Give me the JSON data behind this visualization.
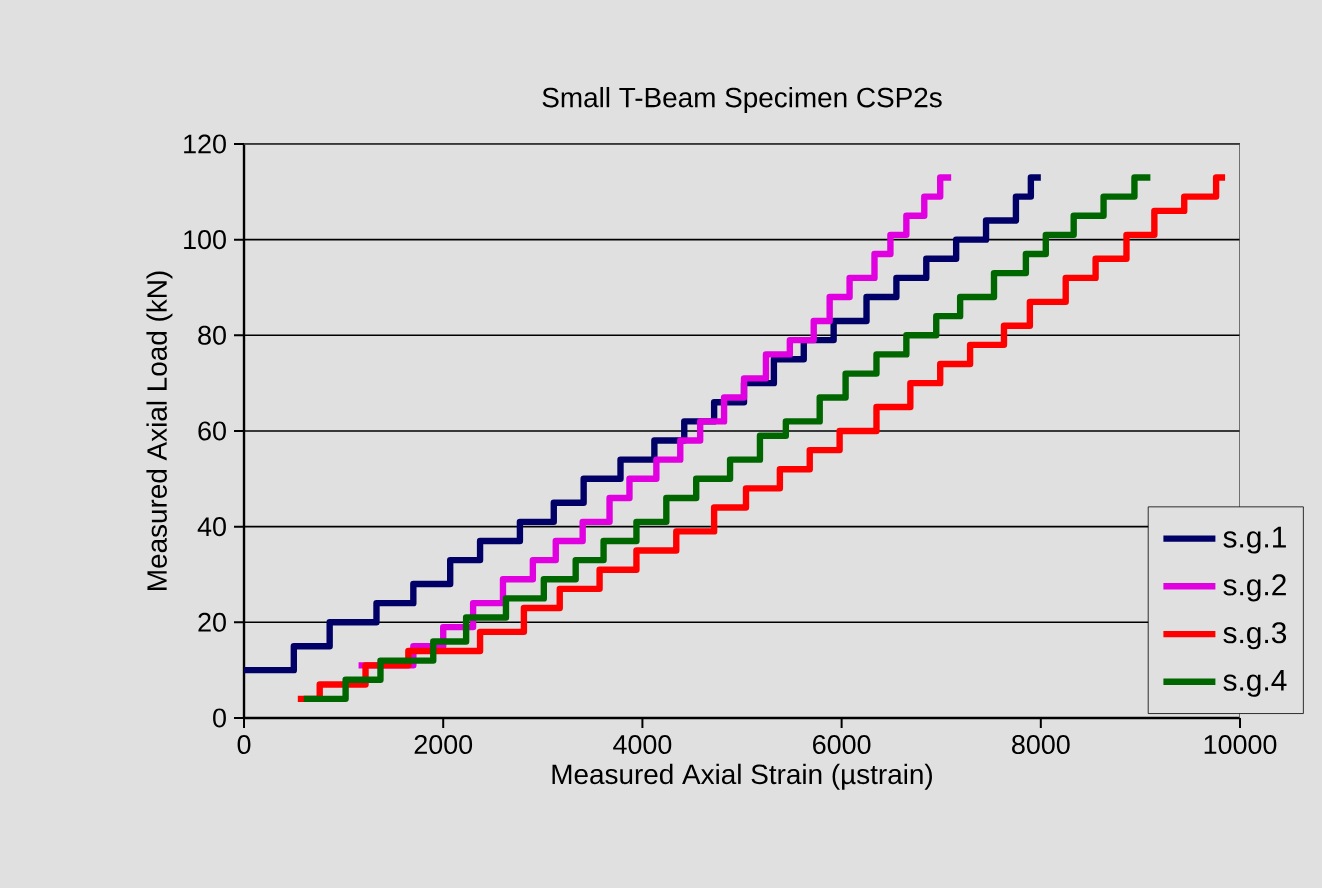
{
  "chart_data": {
    "type": "step",
    "title": "Small T-Beam Specimen CSP2s",
    "xlabel": "Measured Axial Strain (µstrain)",
    "ylabel": "Measured Axial Load (kN)",
    "xlim": [
      0,
      10000
    ],
    "xticks": [
      0,
      2000,
      4000,
      6000,
      8000,
      10000
    ],
    "ylim": [
      0,
      120
    ],
    "yticks": [
      0,
      20,
      40,
      60,
      80,
      100,
      120
    ],
    "grid": "y",
    "legend": "bottom right",
    "series": [
      {
        "name": "s.g.1",
        "color": "#000066",
        "x": [
          0,
          500,
          860,
          1330,
          1700,
          2070,
          2370,
          2770,
          3110,
          3410,
          3780,
          4120,
          4420,
          4720,
          5020,
          5320,
          5620,
          5920,
          6250,
          6550,
          6850,
          7150,
          7450,
          7750,
          7900,
          8000
        ],
        "values": [
          10,
          15,
          20,
          24,
          28,
          33,
          37,
          41,
          45,
          50,
          54,
          58,
          62,
          66,
          70,
          75,
          79,
          83,
          88,
          92,
          96,
          100,
          104,
          109,
          113,
          113
        ]
      },
      {
        "name": "s.g.2",
        "color": "#e000e0",
        "x": [
          1150,
          1700,
          2000,
          2300,
          2600,
          2900,
          3130,
          3400,
          3670,
          3870,
          4140,
          4380,
          4580,
          4820,
          5020,
          5240,
          5480,
          5720,
          5880,
          6080,
          6330,
          6490,
          6650,
          6830,
          6990,
          7100
        ],
        "values": [
          11,
          15,
          19,
          24,
          29,
          33,
          37,
          41,
          46,
          50,
          54,
          58,
          62,
          67,
          71,
          76,
          79,
          83,
          88,
          92,
          97,
          101,
          105,
          109,
          113,
          113
        ]
      },
      {
        "name": "s.g.3",
        "color": "#ff0000",
        "x": [
          540,
          760,
          1220,
          1650,
          2370,
          2810,
          3170,
          3570,
          3940,
          4340,
          4720,
          5040,
          5380,
          5680,
          5980,
          6350,
          6690,
          6990,
          7290,
          7630,
          7890,
          8250,
          8550,
          8860,
          9140,
          9440,
          9760,
          9850
        ],
        "values": [
          4,
          7,
          11,
          14,
          18,
          23,
          27,
          31,
          35,
          39,
          44,
          48,
          52,
          56,
          60,
          65,
          70,
          74,
          78,
          82,
          87,
          92,
          96,
          101,
          106,
          109,
          113,
          113
        ]
      },
      {
        "name": "s.g.4",
        "color": "#006600",
        "x": [
          600,
          1020,
          1370,
          1900,
          2230,
          2630,
          3010,
          3330,
          3610,
          3940,
          4240,
          4540,
          4880,
          5180,
          5440,
          5780,
          6040,
          6350,
          6650,
          6950,
          7190,
          7530,
          7850,
          8050,
          8330,
          8630,
          8940,
          9100
        ],
        "values": [
          4,
          8,
          12,
          16,
          21,
          25,
          29,
          33,
          37,
          41,
          46,
          50,
          54,
          59,
          62,
          67,
          72,
          76,
          80,
          84,
          88,
          93,
          97,
          101,
          105,
          109,
          113,
          113
        ]
      }
    ]
  }
}
